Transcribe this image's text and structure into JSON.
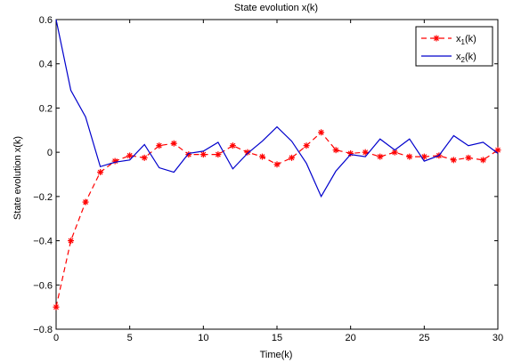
{
  "chart_data": {
    "type": "line",
    "title": "State evolution x(k)",
    "xlabel": "Time(k)",
    "ylabel": "State evolution x(k)",
    "xlim": [
      0,
      30
    ],
    "ylim": [
      -0.8,
      0.6
    ],
    "x_ticks": [
      0,
      5,
      10,
      15,
      20,
      25,
      30
    ],
    "y_ticks": [
      -0.8,
      -0.6,
      -0.4,
      -0.2,
      0,
      0.2,
      0.4,
      0.6
    ],
    "x_tick_labels": [
      "0",
      "5",
      "10",
      "15",
      "20",
      "25",
      "30"
    ],
    "y_tick_labels": [
      "−0.8",
      "−0.6",
      "−0.4",
      "−0.2",
      "0",
      "0.2",
      "0.4",
      "0.6"
    ],
    "grid": false,
    "legend_position": "top-right",
    "x": [
      0,
      1,
      2,
      3,
      4,
      5,
      6,
      7,
      8,
      9,
      10,
      11,
      12,
      13,
      14,
      15,
      16,
      17,
      18,
      19,
      20,
      21,
      22,
      23,
      24,
      25,
      26,
      27,
      28,
      29,
      30
    ],
    "series": [
      {
        "name": "x1(k)",
        "legend_main": "x",
        "legend_sub": "1",
        "legend_suffix": "(k)",
        "color": "#ff0000",
        "style": "dashed",
        "marker": "asterisk",
        "values": [
          -0.7,
          -0.4,
          -0.225,
          -0.09,
          -0.04,
          -0.015,
          -0.025,
          0.03,
          0.04,
          -0.01,
          -0.01,
          -0.01,
          0.03,
          0.0,
          -0.02,
          -0.055,
          -0.025,
          0.03,
          0.09,
          0.01,
          -0.005,
          0.0,
          -0.02,
          0.0,
          -0.02,
          -0.02,
          -0.015,
          -0.035,
          -0.025,
          -0.035,
          0.01
        ]
      },
      {
        "name": "x2(k)",
        "legend_main": "x",
        "legend_sub": "2",
        "legend_suffix": "(k)",
        "color": "#0000cc",
        "style": "solid",
        "marker": "none",
        "values": [
          0.6,
          0.28,
          0.16,
          -0.065,
          -0.045,
          -0.035,
          0.035,
          -0.07,
          -0.09,
          -0.005,
          0.005,
          0.045,
          -0.075,
          -0.005,
          0.05,
          0.115,
          0.05,
          -0.05,
          -0.2,
          -0.085,
          -0.01,
          -0.02,
          0.06,
          0.01,
          0.06,
          -0.04,
          -0.015,
          0.075,
          0.03,
          0.045,
          -0.005
        ]
      }
    ]
  }
}
